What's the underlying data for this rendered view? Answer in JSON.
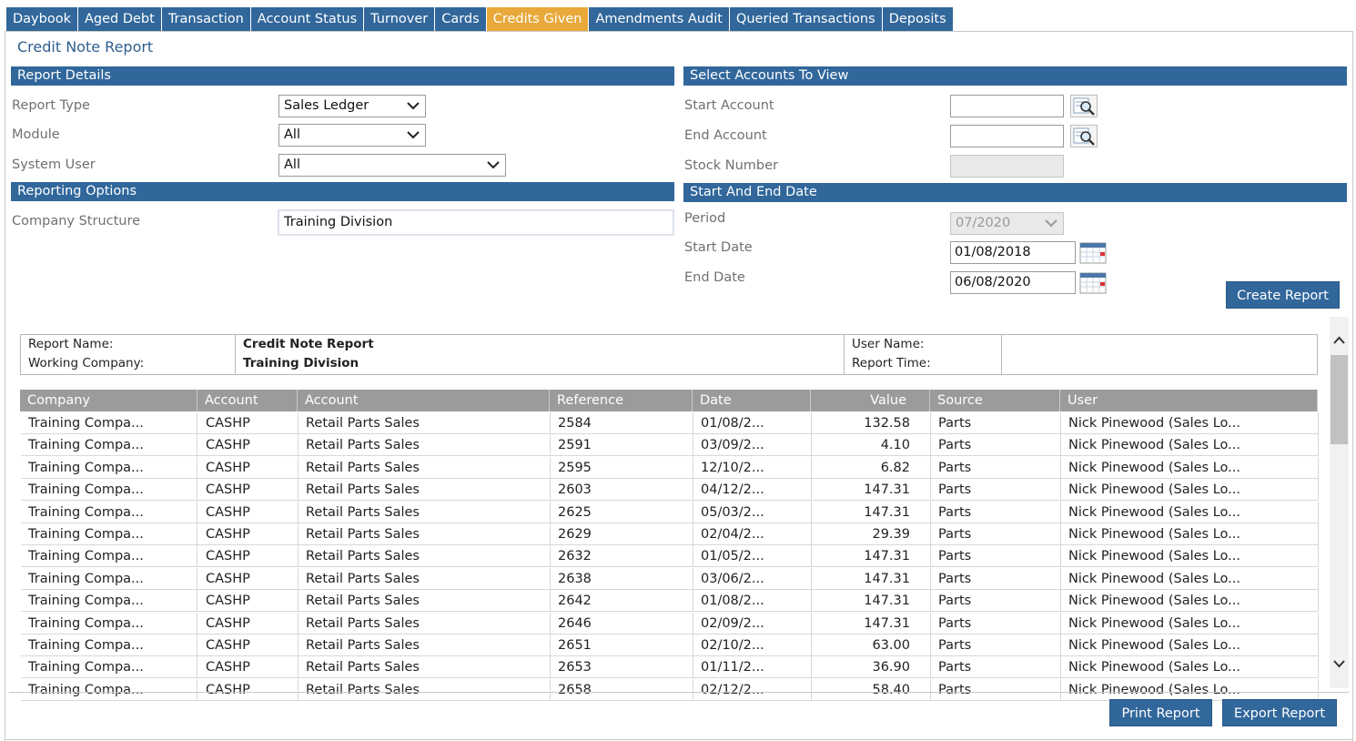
{
  "tabs": [
    {
      "label": "Daybook",
      "active": false
    },
    {
      "label": "Aged Debt",
      "active": false
    },
    {
      "label": "Transaction",
      "active": false
    },
    {
      "label": "Account Status",
      "active": false
    },
    {
      "label": "Turnover",
      "active": false
    },
    {
      "label": "Cards",
      "active": false
    },
    {
      "label": "Credits Given",
      "active": true
    },
    {
      "label": "Amendments Audit",
      "active": false
    },
    {
      "label": "Queried Transactions",
      "active": false
    },
    {
      "label": "Deposits",
      "active": false
    }
  ],
  "page_title": "Credit Note Report",
  "report_details": {
    "heading": "Report Details",
    "report_type_label": "Report Type",
    "report_type_value": "Sales Ledger",
    "module_label": "Module",
    "module_value": "All",
    "system_user_label": "System User",
    "system_user_value": "All"
  },
  "reporting_options": {
    "heading": "Reporting Options",
    "company_structure_label": "Company Structure",
    "company_structure_value": "Training Division"
  },
  "select_accounts": {
    "heading": "Select Accounts To View",
    "start_account_label": "Start Account",
    "start_account_value": "",
    "end_account_label": "End Account",
    "end_account_value": "",
    "stock_number_label": "Stock Number",
    "stock_number_value": ""
  },
  "dates": {
    "heading": "Start And End Date",
    "period_label": "Period",
    "period_value": "07/2020",
    "start_date_label": "Start Date",
    "start_date_value": "01/08/2018",
    "end_date_label": "End Date",
    "end_date_value": "06/08/2020"
  },
  "create_report_label": "Create Report",
  "report_header": {
    "report_name_label": "Report Name:",
    "report_name_value": "Credit Note Report",
    "working_company_label": "Working Company:",
    "working_company_value": "Training Division",
    "user_name_label": "User Name:",
    "user_name_value": "",
    "report_time_label": "Report Time:",
    "report_time_value": ""
  },
  "grid": {
    "columns": [
      "Company",
      "Account",
      "Account",
      "Reference",
      "Date",
      "Value",
      "Source",
      "User"
    ],
    "rows": [
      [
        "Training Compa...",
        "CASHP",
        "Retail Parts Sales",
        "2584",
        "01/08/2...",
        "132.58",
        "Parts",
        "Nick Pinewood (Sales Lo..."
      ],
      [
        "Training Compa...",
        "CASHP",
        "Retail Parts Sales",
        "2591",
        "03/09/2...",
        "4.10",
        "Parts",
        "Nick Pinewood (Sales Lo..."
      ],
      [
        "Training Compa...",
        "CASHP",
        "Retail Parts Sales",
        "2595",
        "12/10/2...",
        "6.82",
        "Parts",
        "Nick Pinewood (Sales Lo..."
      ],
      [
        "Training Compa...",
        "CASHP",
        "Retail Parts Sales",
        "2603",
        "04/12/2...",
        "147.31",
        "Parts",
        "Nick Pinewood (Sales Lo..."
      ],
      [
        "Training Compa...",
        "CASHP",
        "Retail Parts Sales",
        "2625",
        "05/03/2...",
        "147.31",
        "Parts",
        "Nick Pinewood (Sales Lo..."
      ],
      [
        "Training Compa...",
        "CASHP",
        "Retail Parts Sales",
        "2629",
        "02/04/2...",
        "29.39",
        "Parts",
        "Nick Pinewood (Sales Lo..."
      ],
      [
        "Training Compa...",
        "CASHP",
        "Retail Parts Sales",
        "2632",
        "01/05/2...",
        "147.31",
        "Parts",
        "Nick Pinewood (Sales Lo..."
      ],
      [
        "Training Compa...",
        "CASHP",
        "Retail Parts Sales",
        "2638",
        "03/06/2...",
        "147.31",
        "Parts",
        "Nick Pinewood (Sales Lo..."
      ],
      [
        "Training Compa...",
        "CASHP",
        "Retail Parts Sales",
        "2642",
        "01/08/2...",
        "147.31",
        "Parts",
        "Nick Pinewood (Sales Lo..."
      ],
      [
        "Training Compa...",
        "CASHP",
        "Retail Parts Sales",
        "2646",
        "02/09/2...",
        "147.31",
        "Parts",
        "Nick Pinewood (Sales Lo..."
      ],
      [
        "Training Compa...",
        "CASHP",
        "Retail Parts Sales",
        "2651",
        "02/10/2...",
        "63.00",
        "Parts",
        "Nick Pinewood (Sales Lo..."
      ],
      [
        "Training Compa...",
        "CASHP",
        "Retail Parts Sales",
        "2653",
        "01/11/2...",
        "36.90",
        "Parts",
        "Nick Pinewood (Sales Lo..."
      ],
      [
        "Training Compa...",
        "CASHP",
        "Retail Parts Sales",
        "2658",
        "02/12/2...",
        "58.40",
        "Parts",
        "Nick Pinewood (Sales Lo..."
      ]
    ]
  },
  "print_report_label": "Print Report",
  "export_report_label": "Export Report",
  "icons": {
    "lookup": "magnifier-search-icon",
    "calendar": "calendar-icon",
    "dropdown": "chevron-down-icon"
  },
  "colors": {
    "primary": "#31679b",
    "active_tab": "#e8a93a",
    "grid_header": "#9b9b9b"
  }
}
